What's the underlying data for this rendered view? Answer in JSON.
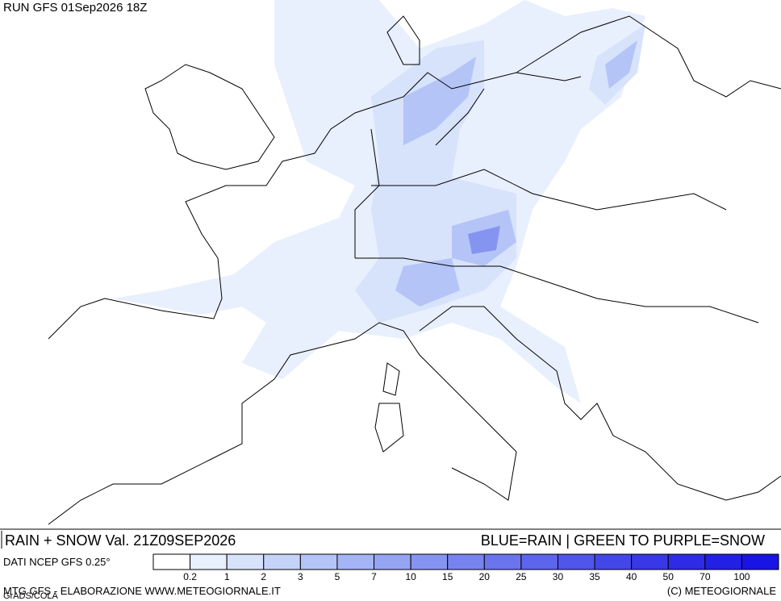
{
  "header": {
    "run": "RUN GFS 01Sep2026 18Z"
  },
  "caption": {
    "left": "RAIN + SNOW Val. 21Z09SEP2026",
    "right": "BLUE=RAIN | GREEN TO PURPLE=SNOW"
  },
  "legend": {
    "source": "DATI NCEP GFS 0.25°",
    "labels": [
      0.2,
      1,
      2,
      3,
      5,
      7,
      10,
      15,
      20,
      25,
      30,
      35,
      40,
      50,
      70,
      100
    ],
    "colors": [
      "#ffffff",
      "#e8effd",
      "#d7e2fb",
      "#c6d3f9",
      "#b5c4f7",
      "#a5b4f5",
      "#95a4f3",
      "#8694f1",
      "#7784ef",
      "#6974ed",
      "#5c65eb",
      "#5056e9",
      "#4447e7",
      "#3838e6",
      "#2d2be5",
      "#2220e4",
      "#1814e3"
    ]
  },
  "footer": {
    "left": "MTG GFS - ELABORAZIONE WWW.METEOGIORNALE.IT",
    "right": "(C) METEOGIORNALE",
    "credit": "GrADS/COLA"
  }
}
